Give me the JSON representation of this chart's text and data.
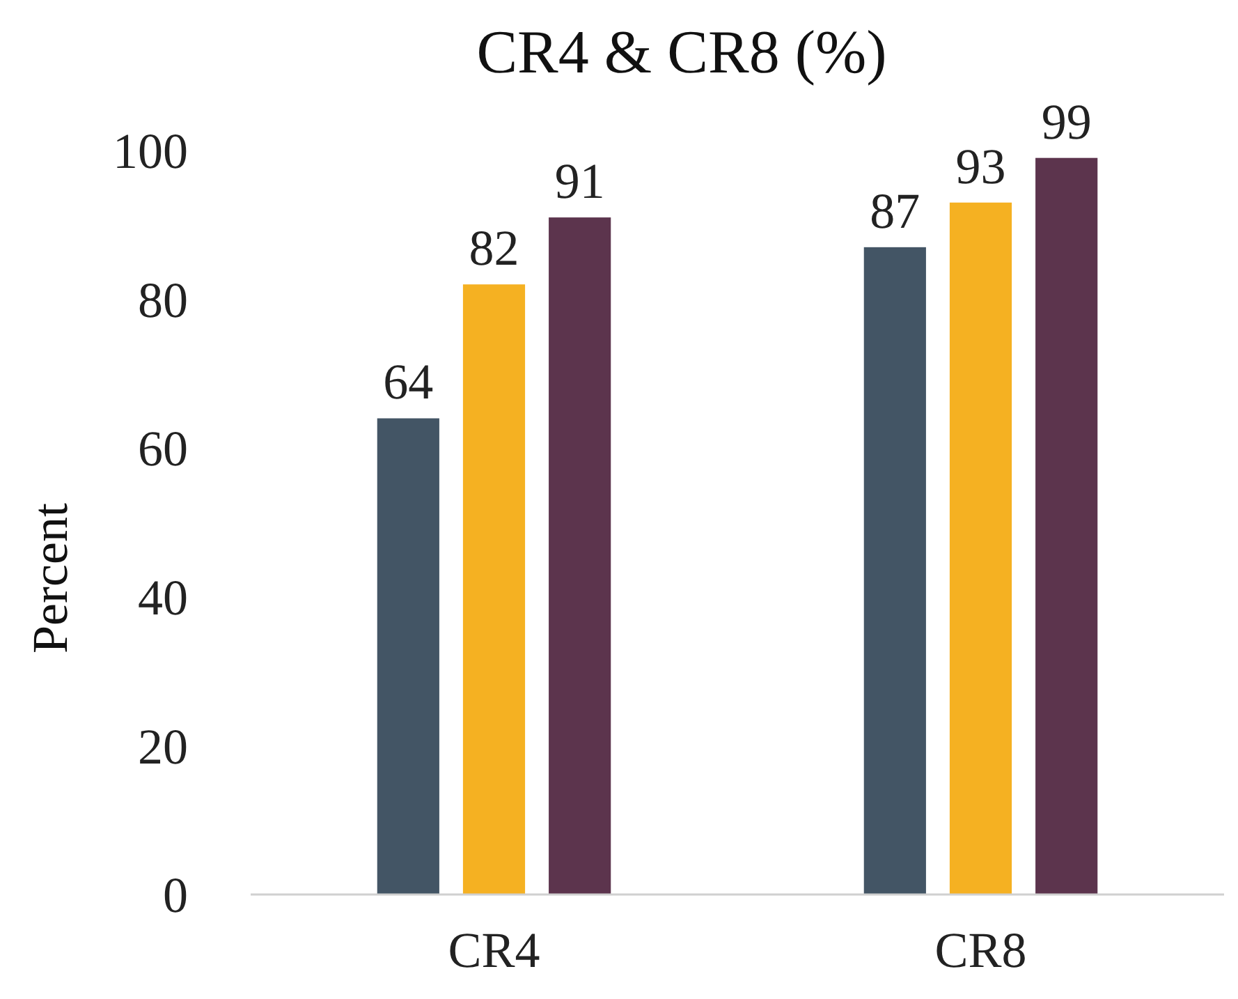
{
  "chart_data": {
    "type": "bar",
    "title": "CR4 & CR8 (%)",
    "ylabel": "Percent",
    "categories": [
      "CR4",
      "CR8"
    ],
    "series": [
      {
        "color": "#435565",
        "values": [
          64,
          87
        ]
      },
      {
        "color": "#f5b122",
        "values": [
          82,
          93
        ]
      },
      {
        "color": "#5c344d",
        "values": [
          91,
          99
        ]
      }
    ],
    "ylim": [
      0,
      100
    ],
    "yticks": [
      0,
      20,
      40,
      60,
      80,
      100
    ],
    "data_labels": true,
    "grid": false
  }
}
